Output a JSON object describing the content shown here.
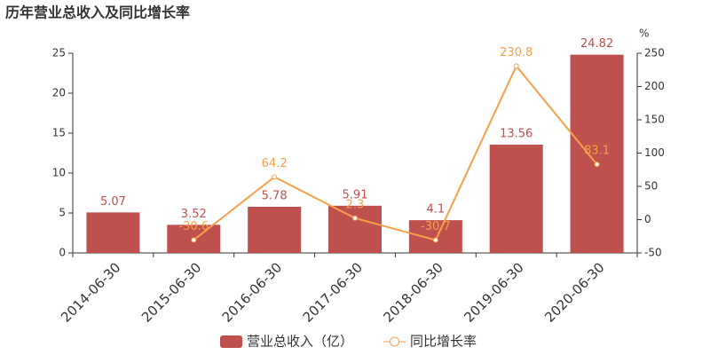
{
  "chart_data": {
    "type": "bar",
    "title": "历年营业总收入及同比增长率",
    "categories": [
      "2014-06-30",
      "2015-06-30",
      "2016-06-30",
      "2017-06-30",
      "2018-06-30",
      "2019-06-30",
      "2020-06-30"
    ],
    "series": [
      {
        "name": "营业总收入（亿）",
        "type": "bar",
        "color": "#c0504d",
        "values": [
          5.07,
          3.52,
          5.78,
          5.91,
          4.1,
          13.56,
          24.82
        ]
      },
      {
        "name": "同比增长率",
        "type": "line",
        "axis": "y2",
        "color": "#f5a04a",
        "values": [
          null,
          -30.6,
          64.2,
          2.3,
          -30.7,
          230.8,
          83.1
        ]
      }
    ],
    "ylim": [
      0,
      25
    ],
    "yticks": [
      0,
      5,
      10,
      15,
      20,
      25
    ],
    "y2label": "%",
    "y2lim": [
      -50,
      250
    ],
    "y2ticks": [
      -50,
      0,
      50,
      100,
      150,
      200,
      250
    ]
  }
}
